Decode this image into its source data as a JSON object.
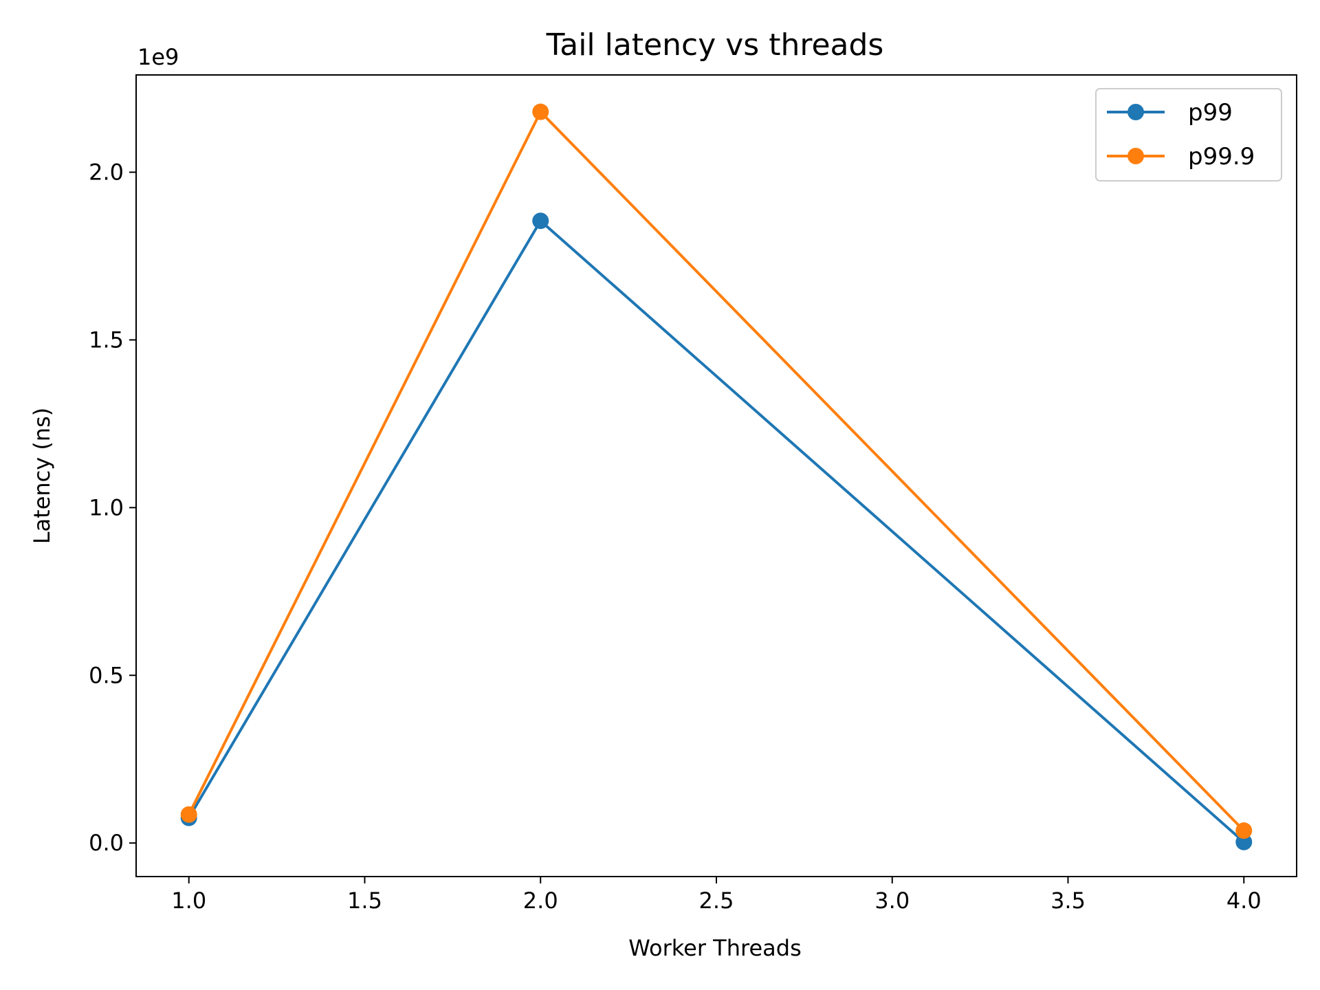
{
  "chart_data": {
    "type": "line",
    "title": "Tail latency vs threads",
    "xlabel": "Worker Threads",
    "ylabel": "Latency (ns)",
    "y_offset_label": "1e9",
    "xlim": [
      0.85,
      4.15
    ],
    "ylim": [
      -0.1,
      2.29
    ],
    "x_ticks": [
      1.0,
      1.5,
      2.0,
      2.5,
      3.0,
      3.5,
      4.0
    ],
    "x_tick_labels": [
      "1.0",
      "1.5",
      "2.0",
      "2.5",
      "3.0",
      "3.5",
      "4.0"
    ],
    "y_ticks": [
      0.0,
      0.5,
      1.0,
      1.5,
      2.0
    ],
    "y_tick_labels": [
      "0.0",
      "0.5",
      "1.0",
      "1.5",
      "2.0"
    ],
    "grid": false,
    "legend_position": "top-right",
    "x": [
      1,
      2,
      4
    ],
    "series": [
      {
        "name": "p99",
        "color": "#1f77b4",
        "values": [
          0.075,
          1.855,
          0.003
        ]
      },
      {
        "name": "p99.9",
        "color": "#ff7f0e",
        "values": [
          0.085,
          2.18,
          0.037
        ]
      }
    ]
  }
}
